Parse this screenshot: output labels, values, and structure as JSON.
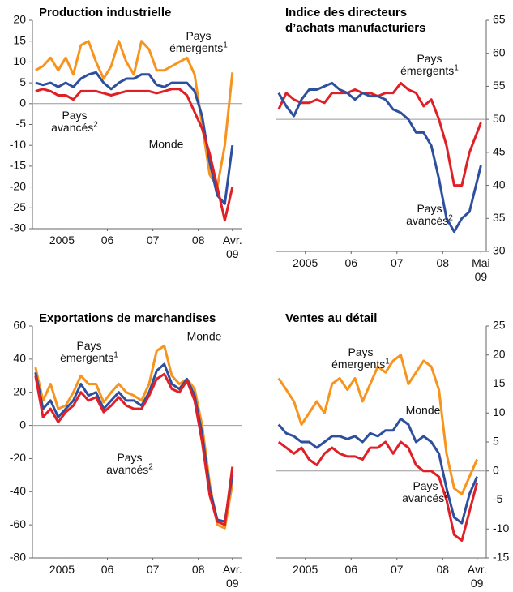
{
  "chart_data": [
    {
      "type": "line",
      "title": "Production industrielle",
      "axis_side": "left",
      "x": [
        2004.917,
        2005.083,
        2005.25,
        2005.417,
        2005.583,
        2005.75,
        2005.917,
        2006.083,
        2006.25,
        2006.417,
        2006.583,
        2006.75,
        2006.917,
        2007.083,
        2007.25,
        2007.417,
        2007.583,
        2007.75,
        2007.917,
        2008.083,
        2008.25,
        2008.417,
        2008.583,
        2008.75,
        2008.917,
        2009.083,
        2009.25
      ],
      "series": [
        {
          "name": "Pays émergents",
          "note": "1",
          "color": "#f7941d",
          "values": [
            8,
            9,
            11,
            8,
            11,
            7,
            14,
            15,
            10,
            6,
            9,
            15,
            10,
            7,
            15,
            13,
            8,
            8,
            9,
            10,
            11,
            7,
            -5,
            -17,
            -20,
            -10,
            7.5
          ]
        },
        {
          "name": "Monde",
          "color": "#2e4f9e",
          "values": [
            5,
            4.5,
            5,
            4,
            5,
            4,
            6,
            7,
            7.5,
            5,
            3.5,
            5,
            6,
            6,
            7,
            7,
            4.5,
            4,
            5,
            5,
            5,
            3,
            -3,
            -14,
            -22,
            -24,
            -10
          ]
        },
        {
          "name": "Pays avancés",
          "note": "2",
          "color": "#e02027",
          "values": [
            3,
            3.5,
            3,
            2,
            2,
            1,
            3,
            3,
            3,
            2.5,
            2,
            2.5,
            3,
            3,
            3,
            3,
            2.5,
            3,
            3.5,
            3.5,
            2,
            -2,
            -6,
            -12,
            -20,
            -28,
            -20
          ]
        }
      ],
      "xlim": [
        2004.85,
        2009.45
      ],
      "ylim": [
        -30,
        20
      ],
      "yticks": [
        -30,
        -25,
        -20,
        -15,
        -10,
        -5,
        0,
        5,
        10,
        15,
        20
      ],
      "xticks": [
        {
          "value": 2005.5,
          "label": "2005"
        },
        {
          "value": 2006.5,
          "label": "06"
        },
        {
          "value": 2007.5,
          "label": "07"
        },
        {
          "value": 2008.5,
          "label": "08"
        },
        {
          "value": 2009.25,
          "label": "Avr. 09"
        }
      ],
      "reference_line": 0
    },
    {
      "type": "line",
      "title": [
        "Indice des directeurs",
        "d’achats manufacturiers"
      ],
      "axis_side": "right",
      "x": [
        2004.917,
        2005.083,
        2005.25,
        2005.417,
        2005.583,
        2005.75,
        2005.917,
        2006.083,
        2006.25,
        2006.417,
        2006.583,
        2006.75,
        2006.917,
        2007.083,
        2007.25,
        2007.417,
        2007.583,
        2007.75,
        2007.917,
        2008.083,
        2008.25,
        2008.417,
        2008.583,
        2008.75,
        2008.917,
        2009.083,
        2009.333
      ],
      "series": [
        {
          "name": "Pays émergents",
          "note": "1",
          "color": "#e02027",
          "values": [
            51.5,
            54,
            53,
            52.5,
            52.5,
            53,
            52.5,
            54,
            54,
            54,
            54.5,
            54,
            54,
            53.5,
            54,
            54,
            55.5,
            54.5,
            54,
            52,
            53,
            50,
            46,
            40,
            40,
            45,
            49.5
          ]
        },
        {
          "name": "Pays avancés",
          "note": "2",
          "color": "#2e4f9e",
          "values": [
            54,
            52,
            50.5,
            53,
            54.5,
            54.5,
            55,
            55.5,
            54.5,
            54,
            53,
            54,
            53.5,
            53.5,
            53,
            51.5,
            51,
            50,
            48,
            48,
            46,
            41,
            35,
            33,
            35,
            36,
            43
          ]
        }
      ],
      "xlim": [
        2004.85,
        2009.45
      ],
      "ylim": [
        30,
        65
      ],
      "yticks": [
        30,
        35,
        40,
        45,
        50,
        55,
        60,
        65
      ],
      "xticks": [
        {
          "value": 2005.5,
          "label": "2005"
        },
        {
          "value": 2006.5,
          "label": "06"
        },
        {
          "value": 2007.5,
          "label": "07"
        },
        {
          "value": 2008.5,
          "label": "08"
        },
        {
          "value": 2009.333,
          "label": "Mai 09"
        }
      ],
      "reference_line": 50
    },
    {
      "type": "line",
      "title": "Exportations de marchandises",
      "axis_side": "left",
      "x": [
        2004.917,
        2005.083,
        2005.25,
        2005.417,
        2005.583,
        2005.75,
        2005.917,
        2006.083,
        2006.25,
        2006.417,
        2006.583,
        2006.75,
        2006.917,
        2007.083,
        2007.25,
        2007.417,
        2007.583,
        2007.75,
        2007.917,
        2008.083,
        2008.25,
        2008.417,
        2008.583,
        2008.75,
        2008.917,
        2009.083,
        2009.25
      ],
      "series": [
        {
          "name": "Pays émergents",
          "note": "1",
          "color": "#f7941d",
          "values": [
            35,
            15,
            25,
            10,
            12,
            20,
            30,
            25,
            25,
            14,
            20,
            25,
            20,
            18,
            15,
            25,
            45,
            48,
            30,
            25,
            28,
            22,
            0,
            -35,
            -60,
            -62,
            -35
          ]
        },
        {
          "name": "Monde",
          "color": "#2e4f9e",
          "values": [
            32,
            10,
            15,
            5,
            10,
            15,
            25,
            18,
            20,
            10,
            15,
            20,
            15,
            15,
            12,
            20,
            33,
            37,
            25,
            22,
            28,
            18,
            -5,
            -38,
            -57,
            -58,
            -30
          ]
        },
        {
          "name": "Pays avancés",
          "note": "2",
          "color": "#e02027",
          "values": [
            30,
            5,
            10,
            2,
            8,
            12,
            20,
            15,
            17,
            8,
            12,
            17,
            12,
            10,
            10,
            18,
            28,
            31,
            22,
            20,
            27,
            15,
            -10,
            -42,
            -58,
            -60,
            -25
          ]
        }
      ],
      "xlim": [
        2004.85,
        2009.45
      ],
      "ylim": [
        -80,
        60
      ],
      "yticks": [
        -80,
        -60,
        -40,
        -20,
        0,
        20,
        40,
        60
      ],
      "xticks": [
        {
          "value": 2005.5,
          "label": "2005"
        },
        {
          "value": 2006.5,
          "label": "06"
        },
        {
          "value": 2007.5,
          "label": "07"
        },
        {
          "value": 2008.5,
          "label": "08"
        },
        {
          "value": 2009.25,
          "label": "Avr. 09"
        }
      ],
      "reference_line": 0
    },
    {
      "type": "line",
      "title": "Ventes au détail",
      "axis_side": "right",
      "x": [
        2004.917,
        2005.083,
        2005.25,
        2005.417,
        2005.583,
        2005.75,
        2005.917,
        2006.083,
        2006.25,
        2006.417,
        2006.583,
        2006.75,
        2006.917,
        2007.083,
        2007.25,
        2007.417,
        2007.583,
        2007.75,
        2007.917,
        2008.083,
        2008.25,
        2008.417,
        2008.583,
        2008.75,
        2008.917,
        2009.083,
        2009.25
      ],
      "series": [
        {
          "name": "Pays émergents",
          "note": "1",
          "color": "#f7941d",
          "values": [
            16,
            14,
            12,
            8,
            10,
            12,
            10,
            15,
            16,
            14,
            16,
            12,
            15,
            18,
            17,
            19,
            20,
            15,
            17,
            19,
            18,
            14,
            3,
            -3,
            -4,
            -1,
            2
          ]
        },
        {
          "name": "Monde",
          "color": "#2e4f9e",
          "values": [
            8,
            6.5,
            6,
            5,
            5,
            4,
            5,
            6,
            6,
            5.5,
            6,
            5,
            6.5,
            6,
            7,
            7,
            9,
            8,
            5,
            6,
            5,
            3,
            -3,
            -8,
            -9,
            -4,
            -1
          ]
        },
        {
          "name": "Pays avancés",
          "note": "2",
          "color": "#e02027",
          "values": [
            5,
            4,
            3,
            4,
            2,
            1,
            3,
            4,
            3,
            2.5,
            2.5,
            2,
            4,
            4,
            5,
            3,
            5,
            4,
            1,
            0,
            0,
            -1,
            -5,
            -11,
            -12,
            -7,
            -2
          ]
        }
      ],
      "xlim": [
        2004.85,
        2009.45
      ],
      "ylim": [
        -15,
        25
      ],
      "yticks": [
        -15,
        -10,
        -5,
        0,
        5,
        10,
        15,
        20,
        25
      ],
      "xticks": [
        {
          "value": 2005.5,
          "label": "2005"
        },
        {
          "value": 2006.5,
          "label": "06"
        },
        {
          "value": 2007.5,
          "label": "07"
        },
        {
          "value": 2008.5,
          "label": "08"
        },
        {
          "value": 2009.25,
          "label": "Avr. 09"
        }
      ],
      "reference_line": 0
    }
  ]
}
